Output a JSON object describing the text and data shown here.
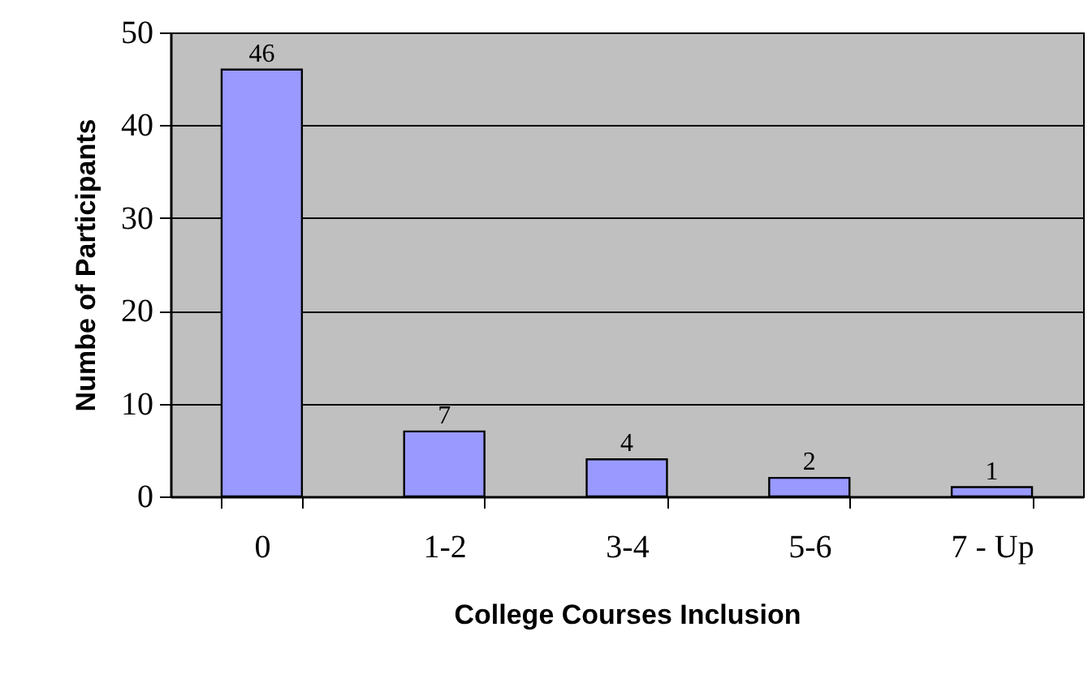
{
  "chart_data": {
    "type": "bar",
    "xlabel": "College Courses Inclusion",
    "ylabel": "Numbe of Participants",
    "categories": [
      "0",
      "1-2",
      "3-4",
      "5-6",
      "7 - Up"
    ],
    "values": [
      46,
      7,
      4,
      2,
      1
    ],
    "color": "#9999ff",
    "ylim": [
      0,
      50
    ],
    "yticks": [
      0,
      10,
      20,
      30,
      40,
      50
    ],
    "grid": "y",
    "data_labels": true
  }
}
